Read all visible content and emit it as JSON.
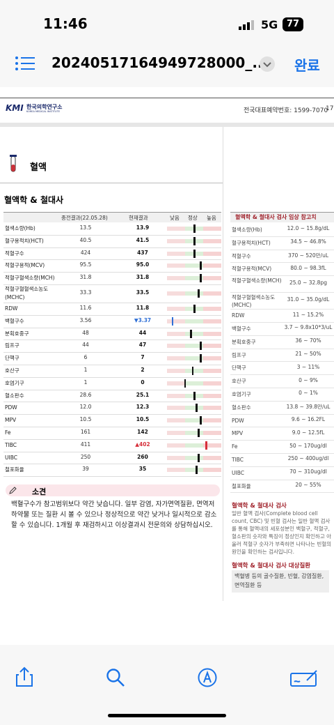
{
  "status_bar": {
    "time": "11:46",
    "network": "5G",
    "battery": "77"
  },
  "nav": {
    "title": "20240517164949728000_...",
    "done": "완료"
  },
  "doc_header": {
    "logo": "KMI",
    "org": "한국의학연구소",
    "org_en": "KOREA MEDICAL INSTITUTE",
    "phone": "전국대표예약번호: 1599-7070",
    "page": "17"
  },
  "section": "혈액",
  "table": {
    "title": "혈액학 & 철대사",
    "headers": [
      "종전결과(22.05.28)",
      "현재결과",
      "낮음",
      "정상",
      "높음"
    ],
    "rows": [
      {
        "name": "혈색소량(Hb)",
        "previous": "13.5",
        "current": "13.9",
        "gauge": 50
      },
      {
        "name": "혈구용적치(HCT)",
        "previous": "40.5",
        "current": "41.5",
        "gauge": 50
      },
      {
        "name": "적혈구수",
        "previous": "424",
        "current": "437",
        "gauge": 50
      },
      {
        "name": "적혈구용적(MCV)",
        "previous": "95.5",
        "current": "95.0",
        "gauge": 62
      },
      {
        "name": "적혈구혈색소량(MCH)",
        "previous": "31.8",
        "current": "31.8",
        "gauge": 62
      },
      {
        "name": "적혈구혈혈색소농도(MCHC)",
        "previous": "33.3",
        "current": "33.5",
        "gauge": 58
      },
      {
        "name": "RDW",
        "previous": "11.6",
        "current": "11.8",
        "gauge": 50
      },
      {
        "name": "백혈구수",
        "previous": "3.56",
        "current": "▼3.37",
        "gauge": 10,
        "color": "#2f6fd6"
      },
      {
        "name": "분획호중구",
        "previous": "48",
        "current": "44",
        "gauge": 44
      },
      {
        "name": "림프구",
        "previous": "44",
        "current": "47",
        "gauge": 62
      },
      {
        "name": "단핵구",
        "previous": "6",
        "current": "7",
        "gauge": 62
      },
      {
        "name": "호산구",
        "previous": "1",
        "current": "2",
        "gauge": 47
      },
      {
        "name": "호염기구",
        "previous": "1",
        "current": "0",
        "gauge": 33
      },
      {
        "name": "혈소판수",
        "previous": "28.6",
        "current": "25.1",
        "gauge": 50
      },
      {
        "name": "PDW",
        "previous": "12.0",
        "current": "12.3",
        "gauge": 54
      },
      {
        "name": "MPV",
        "previous": "10.5",
        "current": "10.5",
        "gauge": 62
      },
      {
        "name": "Fe",
        "previous": "161",
        "current": "142",
        "gauge": 58
      },
      {
        "name": "TIBC",
        "previous": "411",
        "current": "▲402",
        "gauge": 72,
        "color": "#d62f3a"
      },
      {
        "name": "UIBC",
        "previous": "250",
        "current": "260",
        "gauge": 58
      },
      {
        "name": "철포화율",
        "previous": "39",
        "current": "35",
        "gauge": 54
      }
    ]
  },
  "reference": {
    "title": "혈액학 & 철대사 검사 임상 참고치",
    "rows": [
      {
        "name": "혈색소량(Hb)",
        "range": "12.0 ~ 15.8g/dL"
      },
      {
        "name": "혈구용적치(HCT)",
        "range": "34.5 ~ 46.8%"
      },
      {
        "name": "적혈구수",
        "range": "370 ~ 520만/uL"
      },
      {
        "name": "적혈구용적(MCV)",
        "range": "80.0 ~ 98.3fL"
      },
      {
        "name": "적혈구혈색소량(MCH)",
        "range": "25.0 ~ 32.8pg"
      },
      {
        "name": "적혈구혈혈색소농도(MCHC)",
        "range": "31.0 ~ 35.0g/dL"
      },
      {
        "name": "RDW",
        "range": "11 ~ 15.2%"
      },
      {
        "name": "백혈구수",
        "range": "3.7 ~ 9.8x10*3/uL"
      },
      {
        "name": "분획호중구",
        "range": "36 ~ 70%"
      },
      {
        "name": "림프구",
        "range": "21 ~ 50%"
      },
      {
        "name": "단핵구",
        "range": "3 ~ 11%"
      },
      {
        "name": "호산구",
        "range": "0 ~ 9%"
      },
      {
        "name": "호염기구",
        "range": "0 ~ 1%"
      },
      {
        "name": "혈소판수",
        "range": "13.8 ~ 39.8만/uL"
      },
      {
        "name": "PDW",
        "range": "9.6 ~ 16.2FL"
      },
      {
        "name": "MPV",
        "range": "9.0 ~ 12.5fL"
      },
      {
        "name": "Fe",
        "range": "50 ~ 170ug/dl"
      },
      {
        "name": "TIBC",
        "range": "250 ~ 400ug/dl"
      },
      {
        "name": "UIBC",
        "range": "70 ~ 310ug/dl"
      },
      {
        "name": "철포화율",
        "range": "20 ~ 55%"
      }
    ]
  },
  "comment": {
    "title": "소견",
    "text": "백혈구수가 참고범위보다 약간 낮습니다. 일부 감염, 자가면역질환, 면역저하약물 또는 질환 시 볼 수 있으나 정상적으로 약간 낮거나 일시적으로 감소할 수 있습니다. 1개월 후 재검하시고 이상결과시 전문의와 상담하십시오."
  },
  "info": {
    "title": "혈액학 & 철대사 검사",
    "text": "일반 혈액 검사(Complete blood cell count, CBC) 및 빈혈 검사는 일반 혈액 검사를 통해 혈액내의 세포성분인 백혈구, 적혈구, 혈소판의 숫자와 특징이 정상인지 확인하고 아울러 적혈구 숫자가 부족하면 나타나는 빈혈의 원인을 확인하는 검사입니다."
  },
  "diseases": {
    "title": "혈액학 & 철대사 검사 대상질환",
    "text": "백혈병 등의 골수질환, 빈혈, 감염질환, 면역질환 등"
  }
}
